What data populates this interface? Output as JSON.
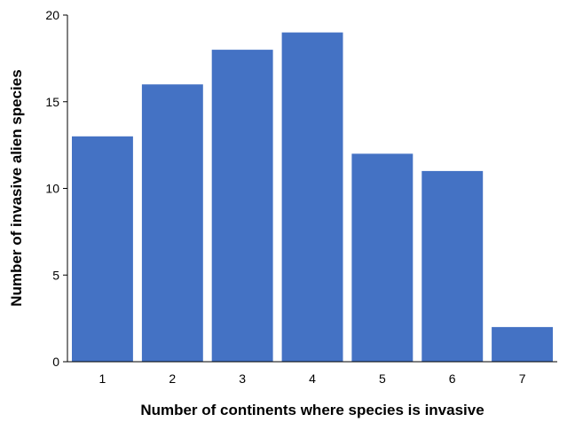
{
  "chart_data": {
    "type": "bar",
    "title": "",
    "xlabel": "Number of continents where species is invasive",
    "ylabel": "Number of invasive alien species",
    "categories": [
      "1",
      "2",
      "3",
      "4",
      "5",
      "6",
      "7"
    ],
    "values": [
      13,
      16,
      18,
      19,
      12,
      11,
      2
    ],
    "ylim": [
      0,
      20
    ],
    "yticks": [
      "0",
      "5",
      "10",
      "15",
      "20"
    ],
    "ytick_values": [
      0,
      5,
      10,
      15,
      20
    ],
    "grid": false,
    "legend": "none",
    "colors": {
      "bar": "#4472C4",
      "axis": "#000000"
    }
  }
}
